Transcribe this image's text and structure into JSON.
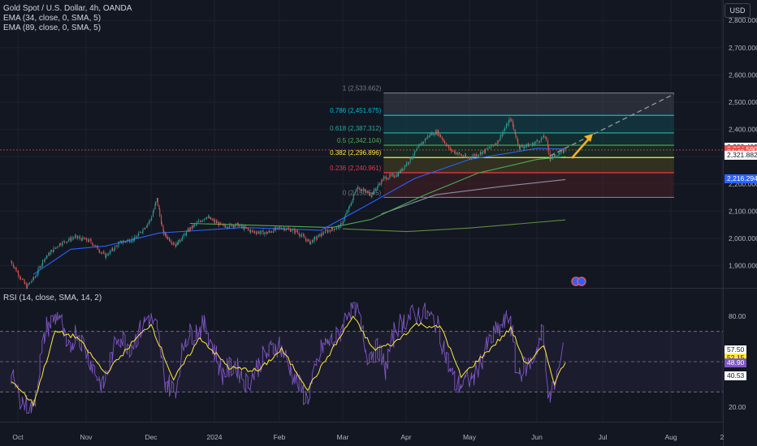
{
  "legend": {
    "title": "Gold Spot / U.S. Dollar, 4h, OANDA",
    "ema1": "EMA (34, close, 0, SMA, 5)",
    "ema2": "EMA (89, close, 0, SMA, 5)",
    "rsi": "RSI (14, close, SMA, 14, 2)"
  },
  "toolbar": {
    "currency": "USD"
  },
  "colors": {
    "background": "#131722",
    "up": "#26a69a",
    "down": "#ef5350",
    "ema34": "#2962ff",
    "ema89": "#4caf50",
    "rsi": "#7e57c2",
    "rsi_ma": "#ffeb3b",
    "arrow": "#f5b324",
    "grid": "#1e222d"
  },
  "price_tags": [
    {
      "label": "2,332.409",
      "value": 2332.409,
      "bg": "#ffffff",
      "fg": "#131722"
    },
    {
      "label": "2,324.590",
      "value": 2324.59,
      "bg": "#ef5350",
      "fg": "#ffffff"
    },
    {
      "label": "34:40",
      "value": 2314,
      "bg": "#ef5350",
      "fg": "#ffffff"
    },
    {
      "label": "2,321.882",
      "value": 2305,
      "bg": "#ffffff",
      "fg": "#131722"
    },
    {
      "label": "2,216.294",
      "value": 2216.294,
      "bg": "#2962ff",
      "fg": "#ffffff"
    }
  ],
  "rsi_tags": [
    {
      "label": "57.50",
      "value": 57.5,
      "bg": "#ffffff",
      "fg": "#131722"
    },
    {
      "label": "52.15",
      "value": 52.15,
      "bg": "#ffeb3b",
      "fg": "#131722"
    },
    {
      "label": "48.90",
      "value": 48.9,
      "bg": "#7e57c2",
      "fg": "#ffffff"
    },
    {
      "label": "40.53",
      "value": 40.53,
      "bg": "#ffffff",
      "fg": "#131722"
    }
  ],
  "chart_data": [
    {
      "type": "candlestick",
      "title": "Gold Spot / U.S. Dollar, 4h, OANDA",
      "ylim": [
        1820,
        2900
      ],
      "y_ticks": [
        {
          "value": 1900,
          "label": "1,900.000"
        },
        {
          "value": 2000,
          "label": "2,000.000"
        },
        {
          "value": 2100,
          "label": "2,100.000"
        },
        {
          "value": 2200,
          "label": "2,200.000"
        },
        {
          "value": 2300,
          "label": "2,300.000"
        },
        {
          "value": 2400,
          "label": "2,400.000"
        },
        {
          "value": 2500,
          "label": "2,500.000"
        },
        {
          "value": 2600,
          "label": "2,600.000"
        },
        {
          "value": 2700,
          "label": "2,700.000"
        },
        {
          "value": 2800,
          "label": "2,800.000"
        }
      ],
      "x_ticks": [
        {
          "label": "Oct",
          "date": "2023-10-01"
        },
        {
          "label": "Nov",
          "date": "2023-11-01"
        },
        {
          "label": "Dec",
          "date": "2023-12-01"
        },
        {
          "label": "2024",
          "date": "2024-01-01"
        },
        {
          "label": "Feb",
          "date": "2024-02-01"
        },
        {
          "label": "Mar",
          "date": "2024-03-01"
        },
        {
          "label": "Apr",
          "date": "2024-04-01"
        },
        {
          "label": "May",
          "date": "2024-05-01"
        },
        {
          "label": "Jun",
          "date": "2024-06-01"
        },
        {
          "label": "Jul",
          "date": "2024-07-01"
        },
        {
          "label": "Aug",
          "date": "2024-08-01"
        },
        {
          "label": "2",
          "date": "2024-09-02"
        }
      ],
      "price_path": [
        [
          "2023-09-28",
          1915
        ],
        [
          "2023-10-05",
          1822
        ],
        [
          "2023-10-09",
          1860
        ],
        [
          "2023-10-13",
          1925
        ],
        [
          "2023-10-20",
          1980
        ],
        [
          "2023-10-27",
          2005
        ],
        [
          "2023-11-03",
          1990
        ],
        [
          "2023-11-10",
          1935
        ],
        [
          "2023-11-17",
          1985
        ],
        [
          "2023-11-24",
          2000
        ],
        [
          "2023-12-01",
          2070
        ],
        [
          "2023-12-04",
          2145
        ],
        [
          "2023-12-07",
          2020
        ],
        [
          "2023-12-13",
          1975
        ],
        [
          "2023-12-20",
          2035
        ],
        [
          "2023-12-28",
          2080
        ],
        [
          "2024-01-05",
          2045
        ],
        [
          "2024-01-12",
          2050
        ],
        [
          "2024-01-19",
          2025
        ],
        [
          "2024-01-26",
          2020
        ],
        [
          "2024-02-02",
          2040
        ],
        [
          "2024-02-09",
          2025
        ],
        [
          "2024-02-15",
          1985
        ],
        [
          "2024-02-22",
          2025
        ],
        [
          "2024-02-29",
          2045
        ],
        [
          "2024-03-05",
          2125
        ],
        [
          "2024-03-08",
          2190
        ],
        [
          "2024-03-15",
          2160
        ],
        [
          "2024-03-21",
          2220
        ],
        [
          "2024-03-28",
          2235
        ],
        [
          "2024-04-03",
          2290
        ],
        [
          "2024-04-08",
          2345
        ],
        [
          "2024-04-12",
          2380
        ],
        [
          "2024-04-16",
          2390
        ],
        [
          "2024-04-22",
          2325
        ],
        [
          "2024-04-30",
          2295
        ],
        [
          "2024-05-08",
          2320
        ],
        [
          "2024-05-14",
          2355
        ],
        [
          "2024-05-20",
          2440
        ],
        [
          "2024-05-24",
          2335
        ],
        [
          "2024-05-30",
          2345
        ],
        [
          "2024-06-05",
          2375
        ],
        [
          "2024-06-07",
          2295
        ],
        [
          "2024-06-11",
          2310
        ],
        [
          "2024-06-14",
          2325
        ]
      ],
      "series": [
        {
          "name": "EMA (34, close, 0, SMA, 5)",
          "color": "#2962ff",
          "points": [
            [
              "2023-10-08",
              1868
            ],
            [
              "2023-10-25",
              1960
            ],
            [
              "2023-11-10",
              1972
            ],
            [
              "2023-12-05",
              2020
            ],
            [
              "2024-01-15",
              2040
            ],
            [
              "2024-02-20",
              2030
            ],
            [
              "2024-03-10",
              2110
            ],
            [
              "2024-04-05",
              2220
            ],
            [
              "2024-05-01",
              2290
            ],
            [
              "2024-06-01",
              2330
            ],
            [
              "2024-06-14",
              2328
            ]
          ]
        },
        {
          "name": "EMA (89, close, 0, SMA, 5)",
          "color": "#4caf50",
          "points": [
            [
              "2023-12-20",
              2055
            ],
            [
              "2024-02-25",
              2040
            ],
            [
              "2024-03-15",
              2070
            ],
            [
              "2024-04-10",
              2160
            ],
            [
              "2024-05-05",
              2240
            ],
            [
              "2024-06-01",
              2290
            ],
            [
              "2024-06-14",
              2300
            ]
          ]
        },
        {
          "name": "",
          "color": "#8a8fa3",
          "points": [
            [
              "2024-03-20",
              2090
            ],
            [
              "2024-04-15",
              2160
            ],
            [
              "2024-05-15",
              2190
            ],
            [
              "2024-06-14",
              2216
            ]
          ]
        },
        {
          "name": "",
          "color": "#5e8c3e",
          "points": [
            [
              "2024-03-01",
              2035
            ],
            [
              "2024-04-01",
              2025
            ],
            [
              "2024-05-01",
              2038
            ],
            [
              "2024-06-14",
              2068
            ]
          ]
        }
      ],
      "fibonacci": {
        "start": "2024-03-21",
        "end": "2024-08-03",
        "levels": [
          {
            "ratio": "1",
            "value": 2533.662,
            "label": "1 (2,533.662)",
            "color": "#787b86"
          },
          {
            "ratio": "0.786",
            "value": 2451.675,
            "label": "0.786 (2,451.675)",
            "color": "#00bcd4"
          },
          {
            "ratio": "0.618",
            "value": 2387.312,
            "label": "0.618 (2,387.312)",
            "color": "#26a69a"
          },
          {
            "ratio": "0.5",
            "value": 2342.104,
            "label": "0.5 (2,342.104)",
            "color": "#4caf50"
          },
          {
            "ratio": "0.382",
            "value": 2296.896,
            "label": "0.382 (2,296.896)",
            "color": "#ffeb3b"
          },
          {
            "ratio": "0.236",
            "value": 2240.961,
            "label": "0.236 (2,240.961)",
            "color": "#f23645"
          },
          {
            "ratio": "0",
            "value": 2150.545,
            "label": "0 (2,150.545)",
            "color": "#787b86"
          }
        ]
      },
      "trend_line": {
        "from": [
          "2024-06-07",
          2303
        ],
        "to": [
          "2024-08-03",
          2530
        ]
      },
      "current_price": 2324.59
    },
    {
      "type": "line",
      "title": "RSI (14, close, SMA, 14, 2)",
      "ylim": [
        15,
        90
      ],
      "y_ticks": [
        {
          "value": 20,
          "label": "20.00"
        },
        {
          "value": 80,
          "label": "80.00"
        }
      ],
      "bands": {
        "upper": 70,
        "middle": 50,
        "lower": 30
      },
      "series": [
        {
          "name": "RSI (14, close, SMA, 14, 2)",
          "color": "#7e57c2",
          "points": [
            [
              "2023-09-28",
              40
            ],
            [
              "2023-10-04",
              22
            ],
            [
              "2023-10-08",
              18
            ],
            [
              "2023-10-14",
              72
            ],
            [
              "2023-10-20",
              82
            ],
            [
              "2023-10-24",
              55
            ],
            [
              "2023-10-28",
              71
            ],
            [
              "2023-11-05",
              45
            ],
            [
              "2023-11-09",
              33
            ],
            [
              "2023-11-16",
              68
            ],
            [
              "2023-11-22",
              60
            ],
            [
              "2023-11-30",
              80
            ],
            [
              "2023-12-04",
              72
            ],
            [
              "2023-12-08",
              38
            ],
            [
              "2023-12-13",
              30
            ],
            [
              "2023-12-18",
              66
            ],
            [
              "2023-12-28",
              74
            ],
            [
              "2024-01-05",
              42
            ],
            [
              "2024-01-11",
              48
            ],
            [
              "2024-01-17",
              35
            ],
            [
              "2024-01-24",
              52
            ],
            [
              "2024-02-01",
              62
            ],
            [
              "2024-02-08",
              40
            ],
            [
              "2024-02-14",
              25
            ],
            [
              "2024-02-21",
              60
            ],
            [
              "2024-02-28",
              66
            ],
            [
              "2024-03-04",
              85
            ],
            [
              "2024-03-08",
              87
            ],
            [
              "2024-03-13",
              55
            ],
            [
              "2024-03-19",
              58
            ],
            [
              "2024-03-22",
              45
            ],
            [
              "2024-03-27",
              72
            ],
            [
              "2024-04-03",
              80
            ],
            [
              "2024-04-10",
              82
            ],
            [
              "2024-04-16",
              75
            ],
            [
              "2024-04-22",
              45
            ],
            [
              "2024-04-25",
              34
            ],
            [
              "2024-05-03",
              39
            ],
            [
              "2024-05-10",
              62
            ],
            [
              "2024-05-14",
              70
            ],
            [
              "2024-05-20",
              80
            ],
            [
              "2024-05-23",
              42
            ],
            [
              "2024-05-30",
              50
            ],
            [
              "2024-06-04",
              70
            ],
            [
              "2024-06-07",
              24
            ],
            [
              "2024-06-10",
              38
            ],
            [
              "2024-06-13",
              55
            ]
          ]
        },
        {
          "name": "",
          "color": "#ffeb3b",
          "points": [
            [
              "2023-09-28",
              38
            ],
            [
              "2023-10-08",
              22
            ],
            [
              "2023-10-18",
              70
            ],
            [
              "2023-10-28",
              66
            ],
            [
              "2023-11-10",
              42
            ],
            [
              "2023-11-22",
              62
            ],
            [
              "2023-12-01",
              75
            ],
            [
              "2023-12-12",
              38
            ],
            [
              "2023-12-25",
              66
            ],
            [
              "2024-01-08",
              46
            ],
            [
              "2024-01-22",
              44
            ],
            [
              "2024-02-02",
              58
            ],
            [
              "2024-02-14",
              32
            ],
            [
              "2024-02-26",
              60
            ],
            [
              "2024-03-06",
              80
            ],
            [
              "2024-03-16",
              58
            ],
            [
              "2024-03-26",
              62
            ],
            [
              "2024-04-06",
              75
            ],
            [
              "2024-04-18",
              72
            ],
            [
              "2024-04-27",
              40
            ],
            [
              "2024-05-08",
              55
            ],
            [
              "2024-05-20",
              72
            ],
            [
              "2024-05-27",
              48
            ],
            [
              "2024-06-04",
              60
            ],
            [
              "2024-06-09",
              36
            ],
            [
              "2024-06-14",
              50
            ]
          ]
        }
      ]
    }
  ]
}
